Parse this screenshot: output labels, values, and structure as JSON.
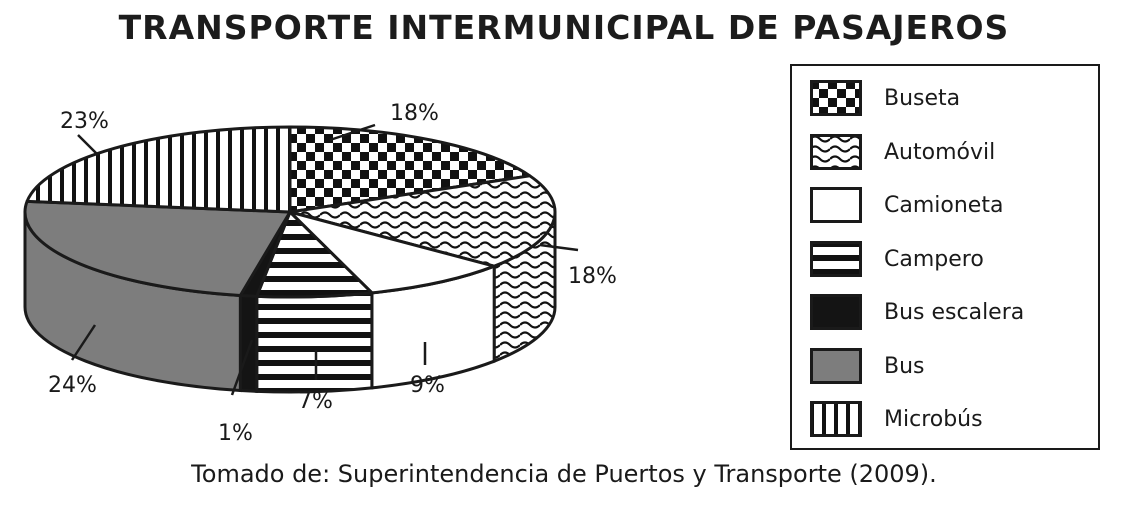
{
  "title": "TRANSPORTE INTERMUNICIPAL DE PASAJEROS",
  "source": "Tomado de: Superintendencia de Puertos y Transporte (2009).",
  "chart_data": {
    "type": "pie",
    "title": "TRANSPORTE INTERMUNICIPAL DE PASAJEROS",
    "slices": [
      {
        "label": "Buseta",
        "value": 18,
        "value_label": "18%",
        "pattern": "checker"
      },
      {
        "label": "Automóvil",
        "value": 18,
        "value_label": "18%",
        "pattern": "waves"
      },
      {
        "label": "Camioneta",
        "value": 9,
        "value_label": "9%",
        "pattern": "white"
      },
      {
        "label": "Campero",
        "value": 7,
        "value_label": "7%",
        "pattern": "hstripes"
      },
      {
        "label": "Bus escalera",
        "value": 1,
        "value_label": "1%",
        "pattern": "black"
      },
      {
        "label": "Bus",
        "value": 24,
        "value_label": "24%",
        "pattern": "gray"
      },
      {
        "label": "Microbús",
        "value": 23,
        "value_label": "23%",
        "pattern": "vstripes"
      }
    ],
    "legend_position": "right",
    "style": "3d-tilted"
  }
}
